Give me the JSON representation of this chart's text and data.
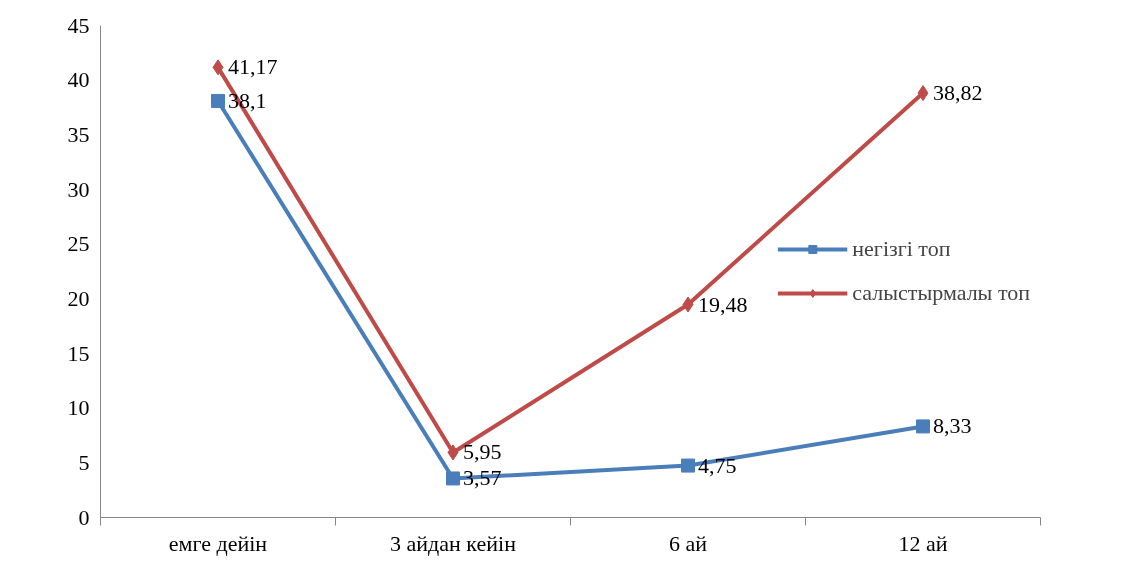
{
  "chart_data": {
    "type": "line",
    "categories": [
      "емге дейін",
      "3 айдан кейін",
      "6 ай",
      "12 ай"
    ],
    "series": [
      {
        "name": "негізгі топ",
        "color": "#4a7ebb",
        "marker": "square",
        "values": [
          38.1,
          3.57,
          4.75,
          8.33
        ],
        "value_labels": [
          "38,1",
          "3,57",
          "4,75",
          "8,33"
        ]
      },
      {
        "name": "салыстырмалы топ",
        "color": "#be4b48",
        "marker": "diamond",
        "values": [
          41.17,
          5.95,
          19.48,
          38.82
        ],
        "value_labels": [
          "41,17",
          "5,95",
          "19,48",
          "38,82"
        ]
      }
    ],
    "ylim": [
      0,
      45
    ],
    "yticks": [
      0,
      5,
      10,
      15,
      20,
      25,
      30,
      35,
      40,
      45
    ],
    "grid": false,
    "legend": "right"
  }
}
